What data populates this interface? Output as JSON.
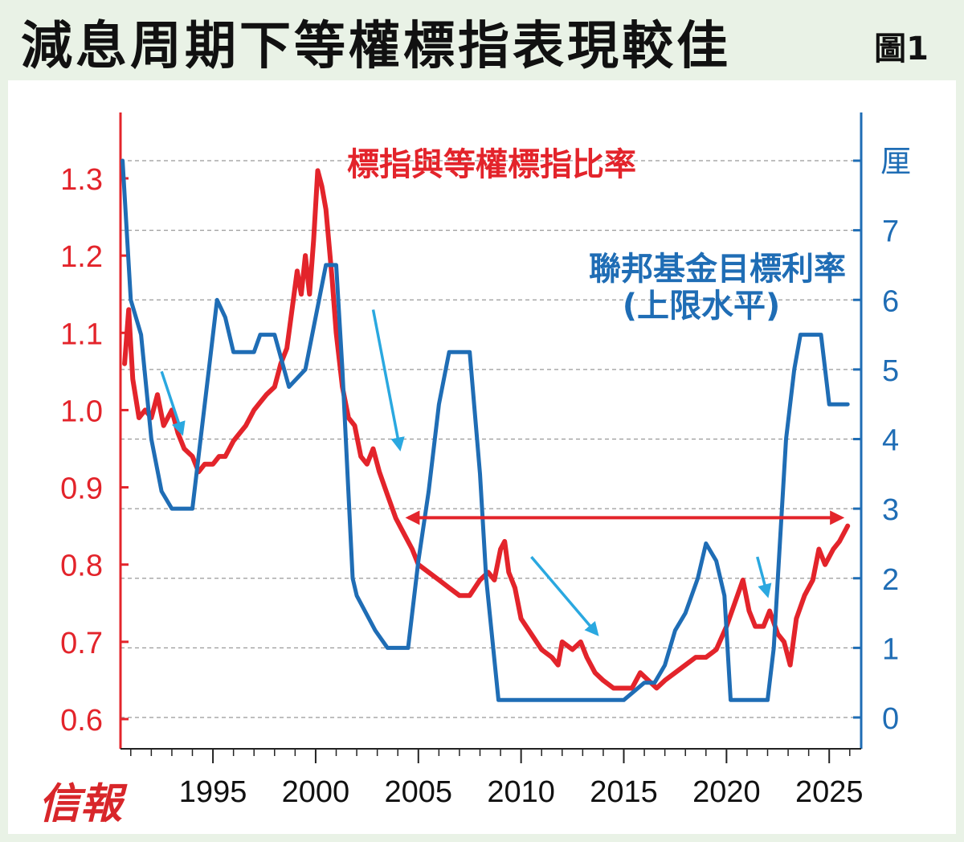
{
  "title": "減息周期下等權標指表現較佳",
  "figure_label": "圖1",
  "logo_text": "信報",
  "colors": {
    "red": "#e3242b",
    "blue": "#1f6db5",
    "arrow": "#2aa8e0"
  },
  "chart_data": {
    "type": "line",
    "title": "減息周期下等權標指表現較佳",
    "x_ticks": [
      1995,
      2000,
      2005,
      2010,
      2015,
      2020,
      2025
    ],
    "xlim": [
      1990.5,
      2026.3
    ],
    "left_axis": {
      "ticks": [
        "1.3",
        "1.2",
        "1.1",
        "1.0",
        "0.9",
        "0.8",
        "0.7",
        "0.6"
      ],
      "ylim": [
        0.58,
        1.37
      ]
    },
    "right_axis": {
      "unit": "厘",
      "ticks": [
        "7",
        "6",
        "5",
        "4",
        "3",
        "2",
        "1",
        "0"
      ],
      "ylim": [
        -0.2,
        8.8
      ]
    },
    "series": [
      {
        "name": "標指與等權標指比率",
        "axis": "left",
        "color": "#e3242b",
        "points": [
          [
            1990.7,
            1.06
          ],
          [
            1990.9,
            1.13
          ],
          [
            1991.1,
            1.04
          ],
          [
            1991.4,
            0.99
          ],
          [
            1991.7,
            1.0
          ],
          [
            1992.0,
            0.99
          ],
          [
            1992.3,
            1.02
          ],
          [
            1992.6,
            0.98
          ],
          [
            1993.0,
            1.0
          ],
          [
            1993.3,
            0.97
          ],
          [
            1993.6,
            0.95
          ],
          [
            1994.0,
            0.94
          ],
          [
            1994.3,
            0.92
          ],
          [
            1994.6,
            0.93
          ],
          [
            1995.0,
            0.93
          ],
          [
            1995.3,
            0.94
          ],
          [
            1995.6,
            0.94
          ],
          [
            1996.0,
            0.96
          ],
          [
            1996.3,
            0.97
          ],
          [
            1996.6,
            0.98
          ],
          [
            1997.0,
            1.0
          ],
          [
            1997.3,
            1.01
          ],
          [
            1997.6,
            1.02
          ],
          [
            1998.0,
            1.03
          ],
          [
            1998.3,
            1.06
          ],
          [
            1998.6,
            1.08
          ],
          [
            1998.9,
            1.14
          ],
          [
            1999.1,
            1.18
          ],
          [
            1999.3,
            1.15
          ],
          [
            1999.5,
            1.2
          ],
          [
            1999.7,
            1.15
          ],
          [
            1999.9,
            1.22
          ],
          [
            2000.1,
            1.31
          ],
          [
            2000.3,
            1.29
          ],
          [
            2000.5,
            1.26
          ],
          [
            2000.8,
            1.17
          ],
          [
            2001.0,
            1.1
          ],
          [
            2001.3,
            1.03
          ],
          [
            2001.6,
            0.99
          ],
          [
            2001.9,
            0.98
          ],
          [
            2002.2,
            0.94
          ],
          [
            2002.5,
            0.93
          ],
          [
            2002.8,
            0.95
          ],
          [
            2003.1,
            0.92
          ],
          [
            2003.5,
            0.89
          ],
          [
            2003.9,
            0.86
          ],
          [
            2004.3,
            0.84
          ],
          [
            2004.7,
            0.82
          ],
          [
            2005.0,
            0.8
          ],
          [
            2005.5,
            0.79
          ],
          [
            2006.0,
            0.78
          ],
          [
            2006.5,
            0.77
          ],
          [
            2007.0,
            0.76
          ],
          [
            2007.5,
            0.76
          ],
          [
            2008.0,
            0.78
          ],
          [
            2008.4,
            0.79
          ],
          [
            2008.7,
            0.78
          ],
          [
            2009.0,
            0.82
          ],
          [
            2009.2,
            0.83
          ],
          [
            2009.4,
            0.79
          ],
          [
            2009.7,
            0.77
          ],
          [
            2010.0,
            0.73
          ],
          [
            2010.5,
            0.71
          ],
          [
            2011.0,
            0.69
          ],
          [
            2011.5,
            0.68
          ],
          [
            2011.8,
            0.67
          ],
          [
            2012.0,
            0.7
          ],
          [
            2012.5,
            0.69
          ],
          [
            2012.9,
            0.7
          ],
          [
            2013.2,
            0.68
          ],
          [
            2013.6,
            0.66
          ],
          [
            2014.0,
            0.65
          ],
          [
            2014.5,
            0.64
          ],
          [
            2015.0,
            0.64
          ],
          [
            2015.4,
            0.64
          ],
          [
            2015.8,
            0.66
          ],
          [
            2016.2,
            0.65
          ],
          [
            2016.6,
            0.64
          ],
          [
            2017.0,
            0.65
          ],
          [
            2017.5,
            0.66
          ],
          [
            2018.0,
            0.67
          ],
          [
            2018.5,
            0.68
          ],
          [
            2019.0,
            0.68
          ],
          [
            2019.5,
            0.69
          ],
          [
            2020.0,
            0.72
          ],
          [
            2020.4,
            0.75
          ],
          [
            2020.8,
            0.78
          ],
          [
            2021.1,
            0.74
          ],
          [
            2021.4,
            0.72
          ],
          [
            2021.8,
            0.72
          ],
          [
            2022.1,
            0.74
          ],
          [
            2022.5,
            0.71
          ],
          [
            2022.8,
            0.7
          ],
          [
            2023.1,
            0.67
          ],
          [
            2023.4,
            0.73
          ],
          [
            2023.8,
            0.76
          ],
          [
            2024.2,
            0.78
          ],
          [
            2024.5,
            0.82
          ],
          [
            2024.8,
            0.8
          ],
          [
            2025.2,
            0.82
          ],
          [
            2025.5,
            0.83
          ],
          [
            2025.9,
            0.85
          ]
        ]
      },
      {
        "name": "聯邦基金目標利率",
        "name_line2": "(上限水平)",
        "axis": "right",
        "color": "#1f6db5",
        "points": [
          [
            1990.6,
            8.0
          ],
          [
            1991.0,
            6.0
          ],
          [
            1991.5,
            5.5
          ],
          [
            1992.0,
            4.0
          ],
          [
            1992.5,
            3.25
          ],
          [
            1993.0,
            3.0
          ],
          [
            1994.0,
            3.0
          ],
          [
            1994.4,
            4.0
          ],
          [
            1994.8,
            5.0
          ],
          [
            1995.2,
            6.0
          ],
          [
            1995.6,
            5.75
          ],
          [
            1996.0,
            5.25
          ],
          [
            1997.0,
            5.25
          ],
          [
            1997.3,
            5.5
          ],
          [
            1998.0,
            5.5
          ],
          [
            1998.7,
            4.75
          ],
          [
            1999.5,
            5.0
          ],
          [
            2000.0,
            5.75
          ],
          [
            2000.5,
            6.5
          ],
          [
            2001.0,
            6.5
          ],
          [
            2001.3,
            5.0
          ],
          [
            2001.8,
            2.0
          ],
          [
            2002.0,
            1.75
          ],
          [
            2002.9,
            1.25
          ],
          [
            2003.5,
            1.0
          ],
          [
            2004.5,
            1.0
          ],
          [
            2005.0,
            2.25
          ],
          [
            2005.5,
            3.25
          ],
          [
            2006.0,
            4.5
          ],
          [
            2006.5,
            5.25
          ],
          [
            2007.5,
            5.25
          ],
          [
            2008.0,
            3.5
          ],
          [
            2008.3,
            2.0
          ],
          [
            2008.9,
            0.25
          ],
          [
            2012.0,
            0.25
          ],
          [
            2015.0,
            0.25
          ],
          [
            2016.0,
            0.5
          ],
          [
            2016.5,
            0.5
          ],
          [
            2017.0,
            0.75
          ],
          [
            2017.5,
            1.25
          ],
          [
            2018.0,
            1.5
          ],
          [
            2018.6,
            2.0
          ],
          [
            2019.0,
            2.5
          ],
          [
            2019.5,
            2.25
          ],
          [
            2019.9,
            1.75
          ],
          [
            2020.2,
            0.25
          ],
          [
            2022.0,
            0.25
          ],
          [
            2022.3,
            1.0
          ],
          [
            2022.6,
            2.5
          ],
          [
            2022.9,
            4.0
          ],
          [
            2023.3,
            5.0
          ],
          [
            2023.6,
            5.5
          ],
          [
            2024.6,
            5.5
          ],
          [
            2024.9,
            4.75
          ],
          [
            2025.0,
            4.5
          ],
          [
            2025.9,
            4.5
          ]
        ]
      }
    ],
    "annotations": [
      {
        "type": "double-arrow",
        "x1": 2004.5,
        "x2": 2025.6,
        "y_right": 2.87
      },
      {
        "type": "arrow",
        "from": [
          1992.5,
          1.05
        ],
        "to": [
          1993.5,
          0.97
        ]
      },
      {
        "type": "arrow",
        "from": [
          2002.8,
          1.13
        ],
        "to": [
          2004.1,
          0.95
        ]
      },
      {
        "type": "arrow",
        "from": [
          2010.5,
          0.81
        ],
        "to": [
          2013.7,
          0.71
        ]
      },
      {
        "type": "arrow",
        "from": [
          2021.5,
          0.81
        ],
        "to": [
          2022.0,
          0.76
        ]
      }
    ],
    "grid": true,
    "legend": "in-plot labels"
  }
}
